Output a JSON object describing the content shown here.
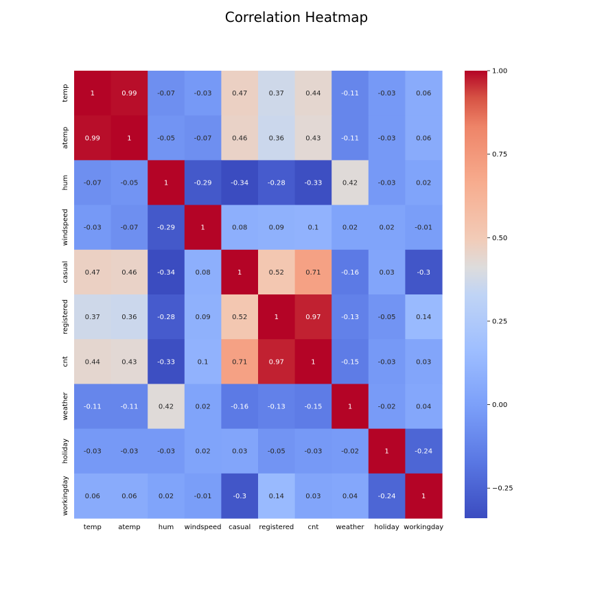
{
  "chart_data": {
    "type": "heatmap",
    "title": "Correlation Heatmap",
    "x_labels": [
      "temp",
      "atemp",
      "hum",
      "windspeed",
      "casual",
      "registered",
      "cnt",
      "weather",
      "holiday",
      "workingday"
    ],
    "y_labels": [
      "temp",
      "atemp",
      "hum",
      "windspeed",
      "casual",
      "registered",
      "cnt",
      "weather",
      "holiday",
      "workingday"
    ],
    "matrix": [
      [
        1,
        0.99,
        -0.07,
        -0.03,
        0.47,
        0.37,
        0.44,
        -0.11,
        -0.03,
        0.06
      ],
      [
        0.99,
        1,
        -0.05,
        -0.07,
        0.46,
        0.36,
        0.43,
        -0.11,
        -0.03,
        0.06
      ],
      [
        -0.07,
        -0.05,
        1,
        -0.29,
        -0.34,
        -0.28,
        -0.33,
        0.42,
        -0.03,
        0.02
      ],
      [
        -0.03,
        -0.07,
        -0.29,
        1,
        0.08,
        0.09,
        0.1,
        0.02,
        0.02,
        -0.01
      ],
      [
        0.47,
        0.46,
        -0.34,
        0.08,
        1,
        0.52,
        0.71,
        -0.16,
        0.03,
        -0.3
      ],
      [
        0.37,
        0.36,
        -0.28,
        0.09,
        0.52,
        1,
        0.97,
        -0.13,
        -0.05,
        0.14
      ],
      [
        0.44,
        0.43,
        -0.33,
        0.1,
        0.71,
        0.97,
        1,
        -0.15,
        -0.03,
        0.03
      ],
      [
        -0.11,
        -0.11,
        0.42,
        0.02,
        -0.16,
        -0.13,
        -0.15,
        1,
        -0.02,
        0.04
      ],
      [
        -0.03,
        -0.03,
        -0.03,
        0.02,
        0.03,
        -0.05,
        -0.03,
        -0.02,
        1,
        -0.24
      ],
      [
        0.06,
        0.06,
        0.02,
        -0.01,
        -0.3,
        0.14,
        0.03,
        0.04,
        -0.24,
        1
      ]
    ],
    "colormap": "coolwarm",
    "vmin": -0.34,
    "vmax": 1.0,
    "colorbar_ticks": [
      1.0,
      0.75,
      0.5,
      0.25,
      0.0,
      -0.25
    ],
    "colorbar_tick_labels": [
      "1.00",
      "0.75",
      "0.50",
      "0.25",
      "0.00",
      "−0.25"
    ],
    "annotations": true
  }
}
